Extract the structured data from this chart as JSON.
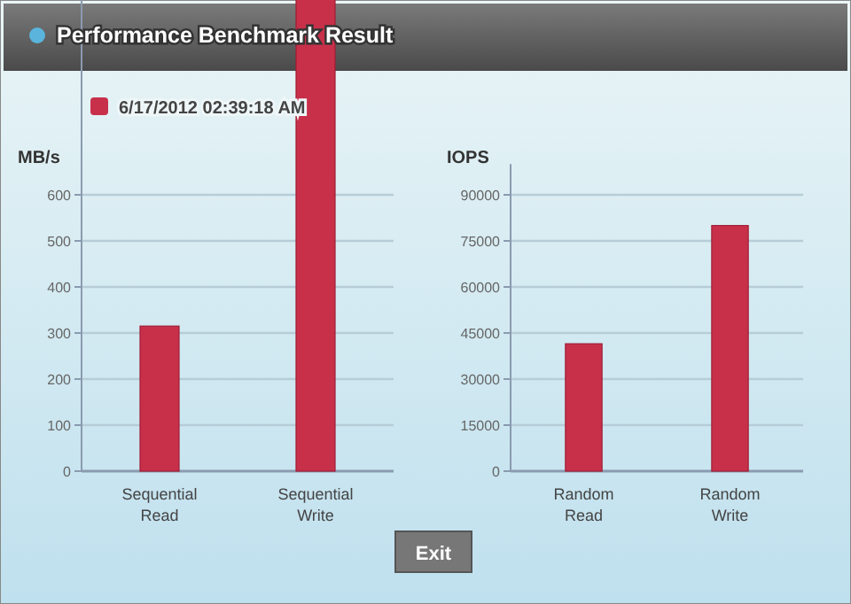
{
  "chart_data": [
    {
      "type": "bar",
      "title": "Performance Benchmark Result",
      "ylabel": "MB/s",
      "categories": [
        "Sequential Read",
        "Sequential Write"
      ],
      "series": [
        {
          "name": "6/17/2012  02:39:18 AM",
          "color": "#c8304a",
          "values": [
            315,
            1025
          ]
        }
      ],
      "ylim": [
        0,
        1025
      ],
      "yticks": [
        0,
        100,
        200,
        300,
        400,
        500,
        600
      ],
      "grid": "y",
      "legend": "top left",
      "annotations": [
        "Exit"
      ]
    },
    {
      "type": "bar",
      "ylabel": "IOPS",
      "categories": [
        "Random Read",
        "Random Write"
      ],
      "series": [
        {
          "color": "#c8304a",
          "values": [
            41500,
            80000
          ]
        }
      ],
      "ylim": [
        0,
        100000
      ],
      "yticks": [
        0,
        15000,
        30000,
        45000,
        60000,
        75000,
        90000
      ],
      "grid": "y"
    }
  ]
}
